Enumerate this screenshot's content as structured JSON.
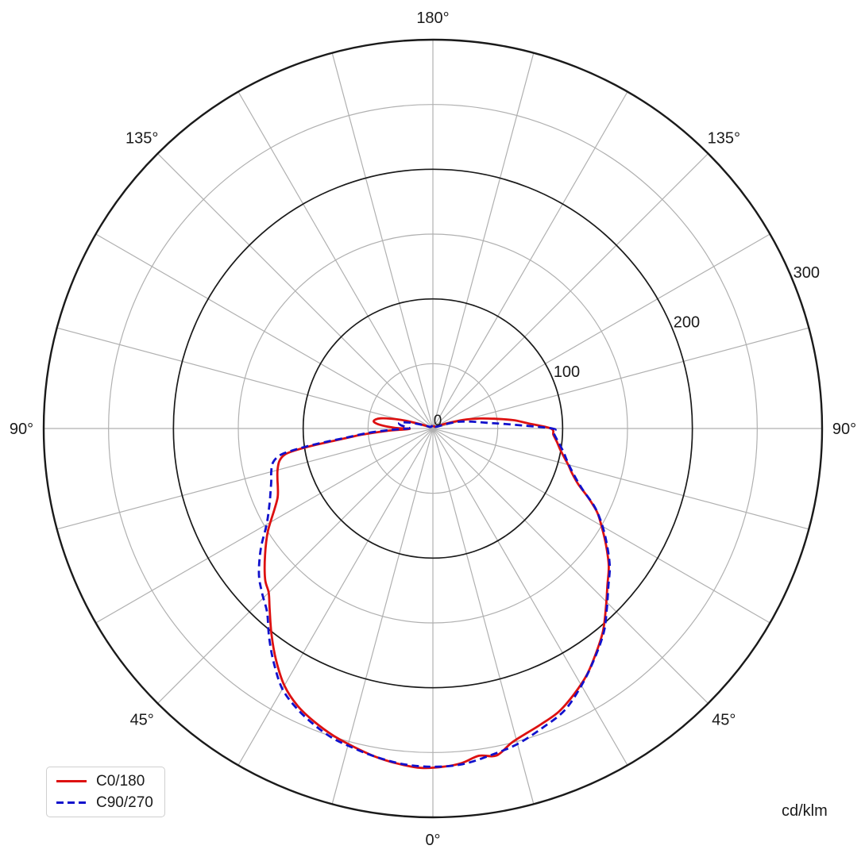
{
  "chart_data": {
    "type": "line",
    "subtype": "polar-photometric",
    "units_label": "cd/klm",
    "orientation": "0-degrees-at-bottom",
    "angle_grid_step_deg": 15,
    "r_axis": {
      "max": 300,
      "major_ticks": [
        100,
        200,
        300
      ],
      "minor_ticks": [
        50,
        150,
        250
      ],
      "zero_label": "0",
      "tick_label_direction_deg_above_horizontal": 22.5
    },
    "angle_tick_labels": [
      {
        "angle_deg": 0,
        "text": "0°"
      },
      {
        "angle_deg": 45,
        "text": "45°"
      },
      {
        "angle_deg": -45,
        "text": "45°"
      },
      {
        "angle_deg": 90,
        "text": "90°"
      },
      {
        "angle_deg": -90,
        "text": "90°"
      },
      {
        "angle_deg": 135,
        "text": "135°"
      },
      {
        "angle_deg": -135,
        "text": "135°"
      },
      {
        "angle_deg": 180,
        "text": "180°"
      }
    ],
    "legend_position": "bottom-left",
    "colors": {
      "grid_minor": "#b0b0b0",
      "grid_major": "#1a1a1a",
      "text": "#1a1a1a"
    },
    "series": [
      {
        "name": "C0/180",
        "color": "#dd1111",
        "dash": "solid",
        "points": [
          [
            -180,
            2
          ],
          [
            -160,
            2
          ],
          [
            -140,
            2
          ],
          [
            -125,
            2
          ],
          [
            -116,
            3
          ],
          [
            -112,
            5
          ],
          [
            -109,
            11
          ],
          [
            -105,
            26
          ],
          [
            -101,
            41
          ],
          [
            -97,
            46
          ],
          [
            -94,
            41
          ],
          [
            -91,
            29
          ],
          [
            -89,
            18
          ],
          [
            -87,
            36
          ],
          [
            -85,
            55
          ],
          [
            -84,
            64
          ],
          [
            -83,
            76
          ],
          [
            -82,
            92
          ],
          [
            -81,
            107
          ],
          [
            -80,
            116
          ],
          [
            -78,
            121
          ],
          [
            -75,
            124
          ],
          [
            -72,
            126
          ],
          [
            -69,
            128
          ],
          [
            -66,
            131
          ],
          [
            -63,
            137
          ],
          [
            -58,
            150
          ],
          [
            -53,
            162
          ],
          [
            -48,
            174
          ],
          [
            -45,
            179
          ],
          [
            -42,
            188
          ],
          [
            -38,
            202
          ],
          [
            -34,
            216
          ],
          [
            -30,
            229
          ],
          [
            -26,
            238
          ],
          [
            -22,
            244
          ],
          [
            -18,
            249
          ],
          [
            -14,
            253
          ],
          [
            -10,
            257
          ],
          [
            -6,
            260
          ],
          [
            -2,
            262
          ],
          [
            2,
            261
          ],
          [
            5,
            259
          ],
          [
            8,
            255
          ],
          [
            11,
            257
          ],
          [
            14,
            250
          ],
          [
            17,
            246
          ],
          [
            20,
            243
          ],
          [
            24,
            239
          ],
          [
            28,
            232
          ],
          [
            32,
            224
          ],
          [
            36,
            214
          ],
          [
            40,
            204
          ],
          [
            44,
            192
          ],
          [
            48,
            181
          ],
          [
            52,
            172
          ],
          [
            56,
            161
          ],
          [
            60,
            150
          ],
          [
            63,
            142
          ],
          [
            66,
            131
          ],
          [
            69,
            120
          ],
          [
            72,
            113
          ],
          [
            75,
            108
          ],
          [
            78,
            103
          ],
          [
            81,
            99
          ],
          [
            84,
            96
          ],
          [
            87,
            93
          ],
          [
            90,
            91
          ],
          [
            93,
            74
          ],
          [
            96,
            62
          ],
          [
            99,
            48
          ],
          [
            102,
            37
          ],
          [
            106,
            24
          ],
          [
            110,
            12
          ],
          [
            114,
            6
          ],
          [
            120,
            3
          ],
          [
            130,
            2
          ],
          [
            145,
            2
          ],
          [
            160,
            2
          ],
          [
            180,
            2
          ]
        ]
      },
      {
        "name": "C90/270",
        "color": "#1111cc",
        "dash": "dashed",
        "points": [
          [
            -180,
            2
          ],
          [
            -160,
            2
          ],
          [
            -140,
            2
          ],
          [
            -125,
            2
          ],
          [
            -116,
            3
          ],
          [
            -112,
            6
          ],
          [
            -108,
            10
          ],
          [
            -104,
            19
          ],
          [
            -100,
            26
          ],
          [
            -96,
            25
          ],
          [
            -93,
            20
          ],
          [
            -90,
            19
          ],
          [
            -88,
            33
          ],
          [
            -86,
            51
          ],
          [
            -84,
            67
          ],
          [
            -83,
            81
          ],
          [
            -82,
            97
          ],
          [
            -81,
            111
          ],
          [
            -80,
            120
          ],
          [
            -78,
            126
          ],
          [
            -75,
            129
          ],
          [
            -72,
            131
          ],
          [
            -69,
            134
          ],
          [
            -65,
            139
          ],
          [
            -60,
            148
          ],
          [
            -55,
            162
          ],
          [
            -50,
            175
          ],
          [
            -46,
            183
          ],
          [
            -42,
            191
          ],
          [
            -38,
            205
          ],
          [
            -34,
            219
          ],
          [
            -30,
            232
          ],
          [
            -26,
            240
          ],
          [
            -22,
            246
          ],
          [
            -18,
            251
          ],
          [
            -14,
            254
          ],
          [
            -10,
            257
          ],
          [
            -5,
            260
          ],
          [
            0,
            261
          ],
          [
            5,
            260
          ],
          [
            10,
            256
          ],
          [
            15,
            252
          ],
          [
            20,
            246
          ],
          [
            25,
            240
          ],
          [
            30,
            229
          ],
          [
            35,
            217
          ],
          [
            40,
            205
          ],
          [
            44,
            193
          ],
          [
            48,
            182
          ],
          [
            52,
            173
          ],
          [
            56,
            162
          ],
          [
            60,
            151
          ],
          [
            64,
            139
          ],
          [
            68,
            124
          ],
          [
            72,
            114
          ],
          [
            76,
            107
          ],
          [
            80,
            102
          ],
          [
            84,
            97
          ],
          [
            88,
            93
          ],
          [
            90,
            92
          ],
          [
            93,
            60
          ],
          [
            96,
            42
          ],
          [
            99,
            33
          ],
          [
            102,
            26
          ],
          [
            105,
            20
          ],
          [
            108,
            12
          ],
          [
            112,
            5
          ],
          [
            118,
            3
          ],
          [
            130,
            2
          ],
          [
            145,
            2
          ],
          [
            160,
            2
          ],
          [
            180,
            2
          ]
        ]
      }
    ]
  }
}
